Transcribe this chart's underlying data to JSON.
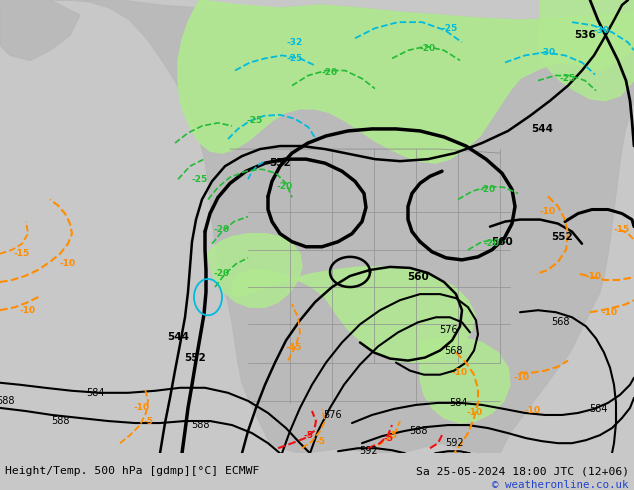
{
  "title_left": "Height/Temp. 500 hPa [gdmp][°C] ECMWF",
  "title_right": "Sa 25-05-2024 18:00 JTC (12+06)",
  "copyright": "© weatheronline.co.uk",
  "bg_color": "#c8c8c8",
  "map_bg": "#dcdcdc",
  "land_color": "#b8b8b8",
  "green_fill": "#b0e890",
  "black": "#000000",
  "orange": "#ff8c00",
  "red": "#ee1111",
  "cyan": "#00bbdd",
  "green_line": "#22bb33",
  "figsize": [
    6.34,
    4.9
  ],
  "dpi": 100
}
